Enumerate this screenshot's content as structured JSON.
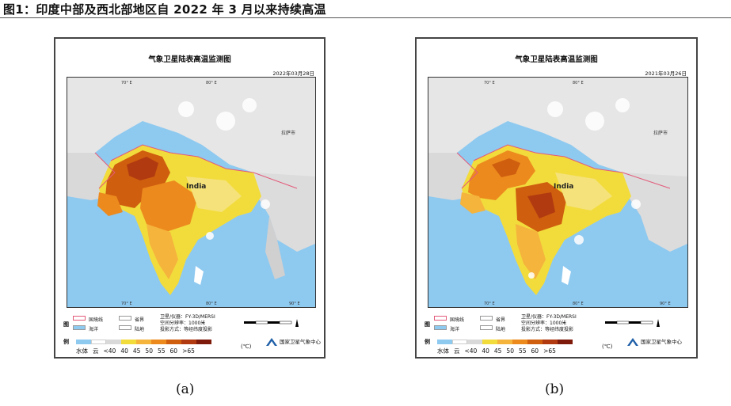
{
  "figure_title": "图1：印度中部及西北部地区自 2022 年 3 月以来持续高温",
  "panels": [
    {
      "title": "气象卫星陆表高温监测图",
      "date": "2022年03月28日",
      "country_label": "India",
      "city_label": "拉萨市",
      "lon_ticks": [
        "70° E",
        "80° E",
        "90° E"
      ],
      "legend": {
        "tu": "图",
        "li": "例",
        "national_border": "国境线",
        "province_border": "省界",
        "ocean": "海洋",
        "land": "陆地",
        "satellite": "卫星/仪器：FY-3D/MERSI",
        "resolution": "空间分辨率：1000米",
        "projection": "投影方式：等经纬度投影",
        "water": "水体",
        "cloud": "云",
        "scale_labels": [
          "<40",
          "40",
          "45",
          "50",
          "55",
          "60",
          ">65"
        ],
        "unit": "(℃)",
        "org": "国家卫星气象中心"
      },
      "caption": "(a)"
    },
    {
      "title": "气象卫星陆表高温监测图",
      "date": "2021年03月26日",
      "country_label": "India",
      "city_label": "拉萨市",
      "lon_ticks": [
        "70° E",
        "80° E",
        "90° E"
      ],
      "legend": {
        "tu": "图",
        "li": "例",
        "national_border": "国境线",
        "province_border": "省界",
        "ocean": "海洋",
        "land": "陆地",
        "satellite": "卫星/仪器：FY-3D/MERSI",
        "resolution": "空间分辨率：1000米",
        "projection": "投影方式：等经纬度投影",
        "water": "水体",
        "cloud": "云",
        "scale_labels": [
          "<40",
          "40",
          "45",
          "50",
          "55",
          "60",
          ">65"
        ],
        "unit": "(℃)",
        "org": "国家卫星气象中心"
      },
      "caption": "(b)"
    }
  ],
  "colors": {
    "ocean": "#8ec9f0",
    "land_gray": "#d9d9d9",
    "yellow": "#f2dc3c",
    "light_orange": "#f5b43c",
    "orange": "#ec8a1e",
    "dark_orange": "#cf5e0e",
    "red": "#b23a10",
    "dark_red": "#7e1a0a",
    "border_red": "#e35a7a"
  }
}
